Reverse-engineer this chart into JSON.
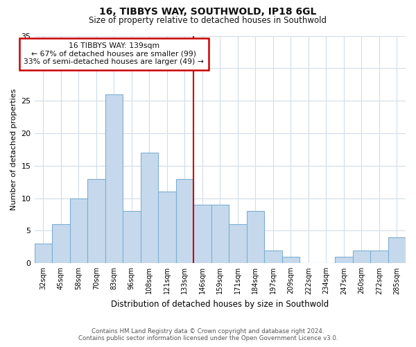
{
  "title": "16, TIBBYS WAY, SOUTHWOLD, IP18 6GL",
  "subtitle": "Size of property relative to detached houses in Southwold",
  "xlabel": "Distribution of detached houses by size in Southwold",
  "ylabel": "Number of detached properties",
  "bar_labels": [
    "32sqm",
    "45sqm",
    "58sqm",
    "70sqm",
    "83sqm",
    "96sqm",
    "108sqm",
    "121sqm",
    "133sqm",
    "146sqm",
    "159sqm",
    "171sqm",
    "184sqm",
    "197sqm",
    "209sqm",
    "222sqm",
    "234sqm",
    "247sqm",
    "260sqm",
    "272sqm",
    "285sqm"
  ],
  "bar_values": [
    3,
    6,
    10,
    13,
    26,
    8,
    17,
    11,
    13,
    9,
    9,
    6,
    8,
    2,
    1,
    0,
    0,
    1,
    2,
    2,
    4
  ],
  "bar_color": "#c6d9ec",
  "bar_edge_color": "#7bafd4",
  "ylim": [
    0,
    35
  ],
  "yticks": [
    0,
    5,
    10,
    15,
    20,
    25,
    30,
    35
  ],
  "reference_line_x": 8.5,
  "annotation_title": "16 TIBBYS WAY: 139sqm",
  "annotation_line1": "← 67% of detached houses are smaller (99)",
  "annotation_line2": "33% of semi-detached houses are larger (49) →",
  "annotation_box_color": "#ffffff",
  "annotation_box_edge_color": "#cc0000",
  "ref_line_color": "#cc0000",
  "footer_line1": "Contains HM Land Registry data © Crown copyright and database right 2024.",
  "footer_line2": "Contains public sector information licensed under the Open Government Licence v3.0.",
  "bg_color": "#ffffff",
  "grid_color": "#d0dde8"
}
